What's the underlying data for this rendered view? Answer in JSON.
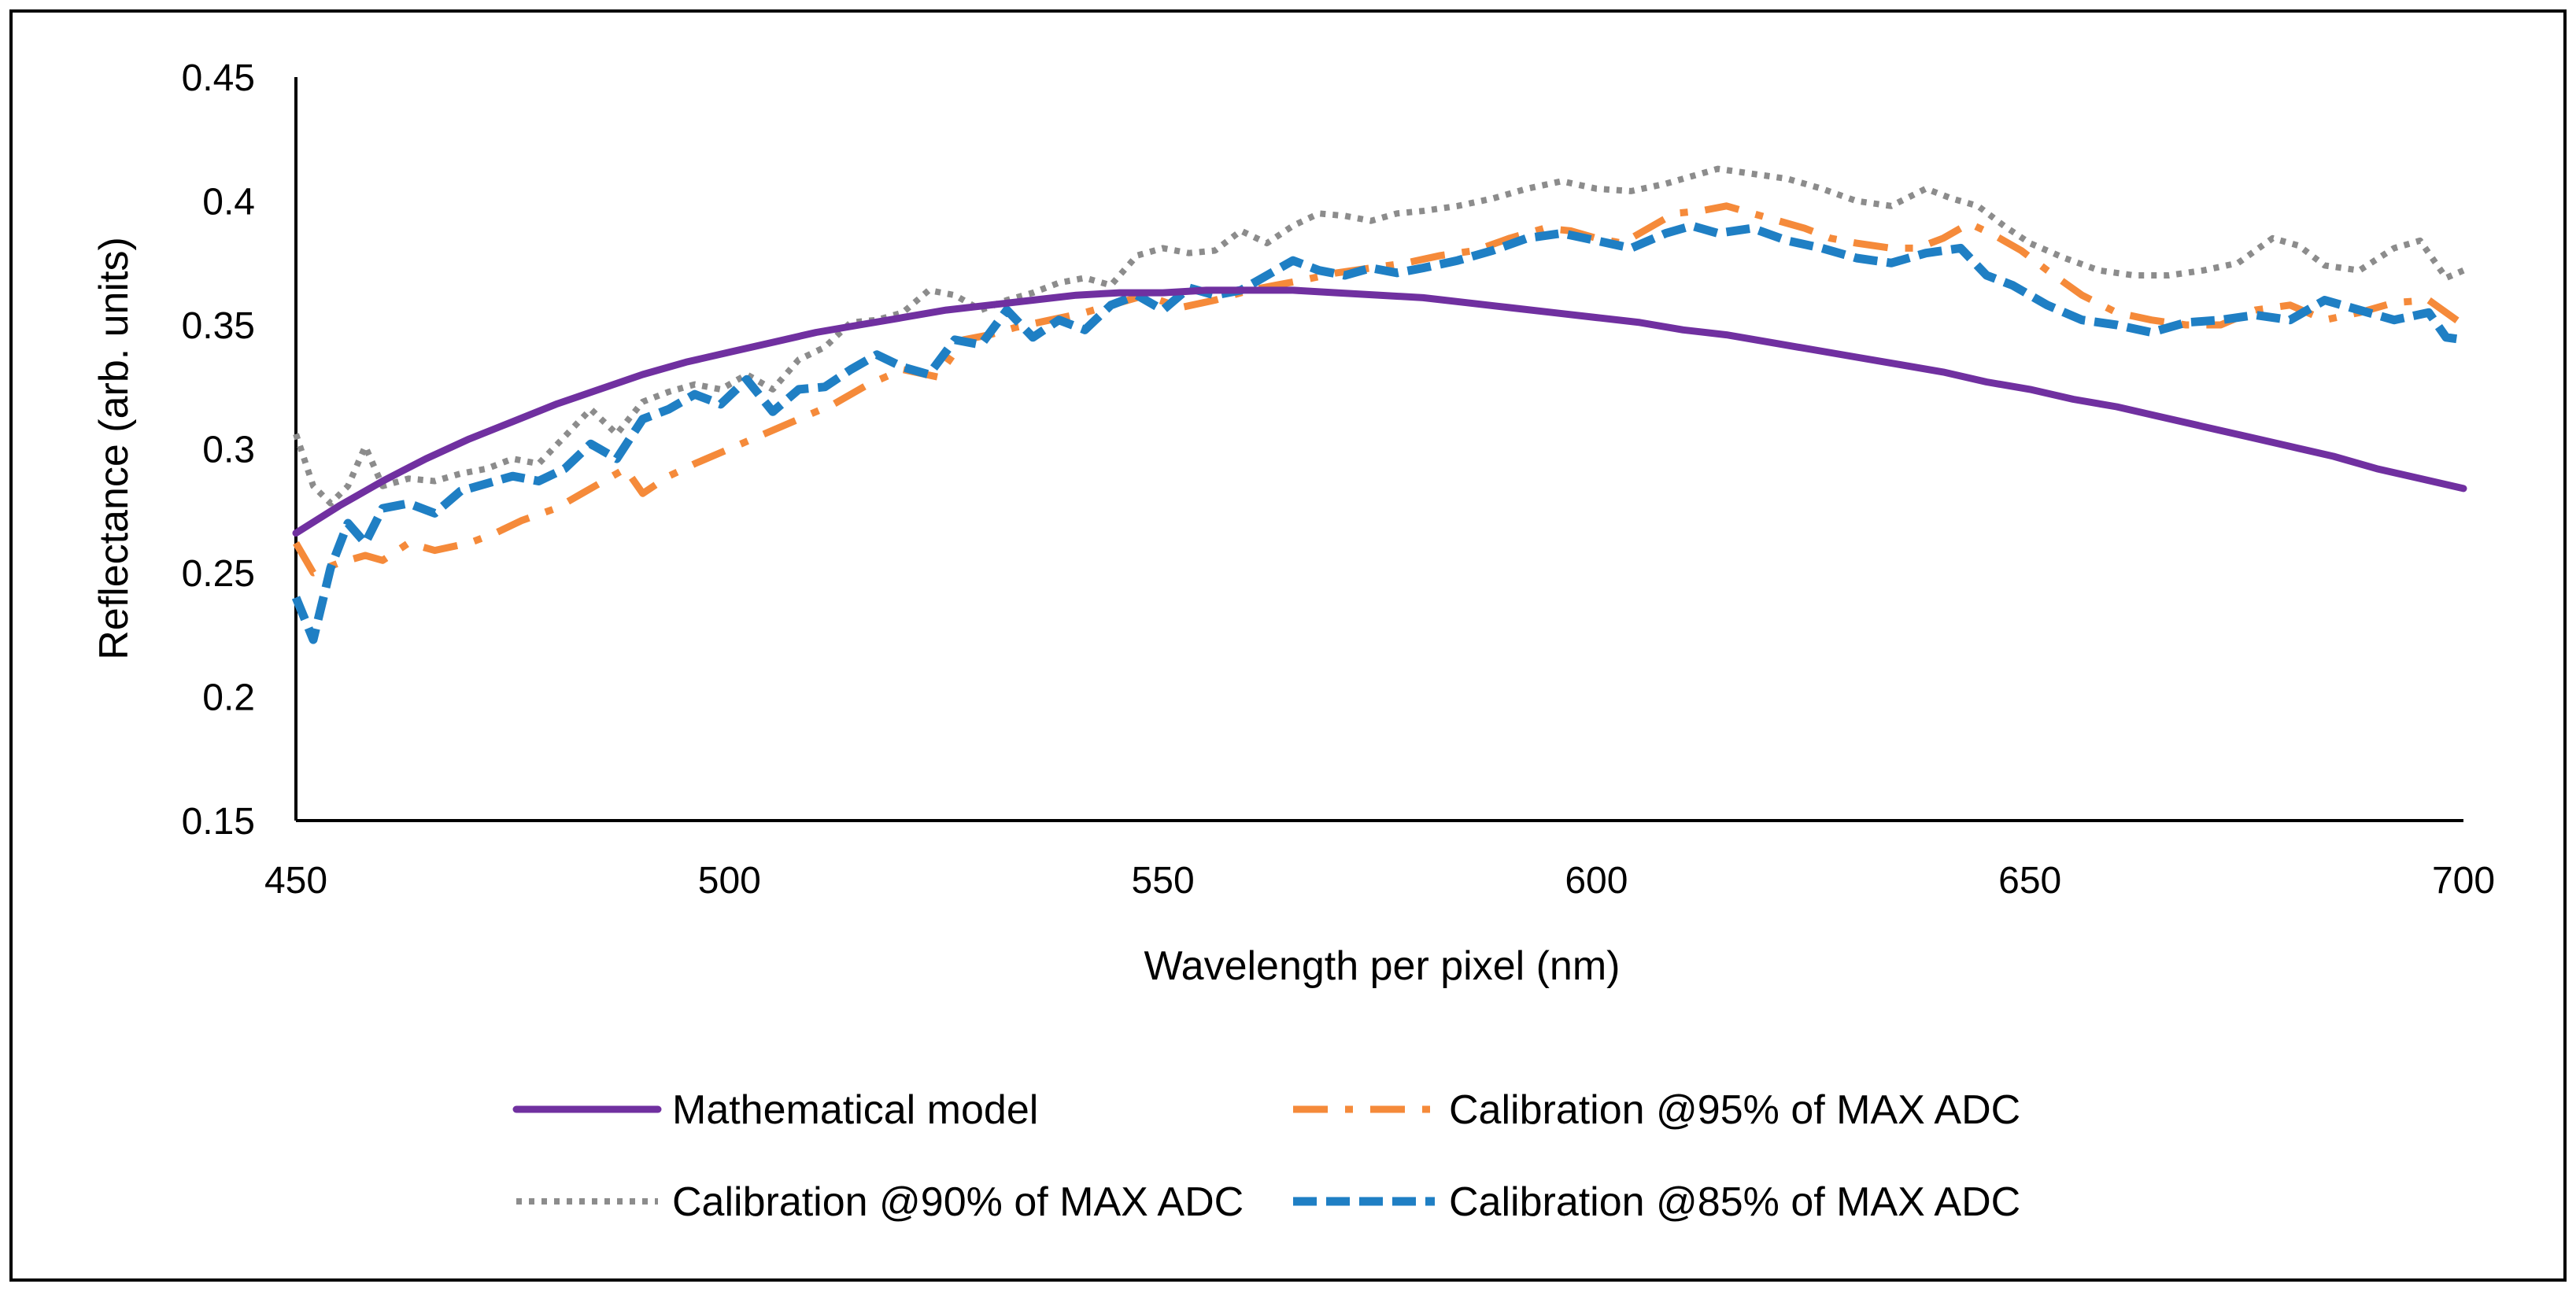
{
  "chart_data": {
    "type": "line",
    "title": "",
    "xlabel": "Wavelength per pixel (nm)",
    "ylabel": "Reflectance (arb. units)",
    "xlim": [
      450,
      700
    ],
    "ylim": [
      0.15,
      0.45
    ],
    "xticks": [
      450,
      500,
      550,
      600,
      650,
      700
    ],
    "xtick_labels": [
      "450",
      "500",
      "550",
      "600",
      "650",
      "700"
    ],
    "yticks": [
      0.15,
      0.2,
      0.25,
      0.3,
      0.35,
      0.4,
      0.45
    ],
    "ytick_labels": [
      "0.15",
      "0.2",
      "0.25",
      "0.3",
      "0.35",
      "0.4",
      "0.45"
    ],
    "grid": false,
    "legend_position": "bottom",
    "series": [
      {
        "name": "Mathematical model",
        "color": "#7030A0",
        "style": "solid",
        "points": [
          [
            450,
            0.266
          ],
          [
            455,
            0.277
          ],
          [
            460,
            0.287
          ],
          [
            465,
            0.296
          ],
          [
            470,
            0.304
          ],
          [
            475,
            0.311
          ],
          [
            480,
            0.318
          ],
          [
            485,
            0.324
          ],
          [
            490,
            0.33
          ],
          [
            495,
            0.335
          ],
          [
            500,
            0.339
          ],
          [
            505,
            0.343
          ],
          [
            510,
            0.347
          ],
          [
            515,
            0.35
          ],
          [
            520,
            0.353
          ],
          [
            525,
            0.356
          ],
          [
            530,
            0.358
          ],
          [
            535,
            0.36
          ],
          [
            540,
            0.362
          ],
          [
            545,
            0.363
          ],
          [
            550,
            0.363
          ],
          [
            555,
            0.364
          ],
          [
            560,
            0.364
          ],
          [
            565,
            0.364
          ],
          [
            570,
            0.363
          ],
          [
            575,
            0.362
          ],
          [
            580,
            0.361
          ],
          [
            585,
            0.359
          ],
          [
            590,
            0.357
          ],
          [
            595,
            0.355
          ],
          [
            600,
            0.353
          ],
          [
            605,
            0.351
          ],
          [
            610,
            0.348
          ],
          [
            615,
            0.346
          ],
          [
            620,
            0.343
          ],
          [
            625,
            0.34
          ],
          [
            630,
            0.337
          ],
          [
            635,
            0.334
          ],
          [
            640,
            0.331
          ],
          [
            645,
            0.327
          ],
          [
            650,
            0.324
          ],
          [
            655,
            0.32
          ],
          [
            660,
            0.317
          ],
          [
            665,
            0.313
          ],
          [
            670,
            0.309
          ],
          [
            675,
            0.305
          ],
          [
            680,
            0.301
          ],
          [
            685,
            0.297
          ],
          [
            690,
            0.292
          ],
          [
            695,
            0.288
          ],
          [
            700,
            0.284
          ]
        ]
      },
      {
        "name": "Calibration @95% of MAX ADC",
        "color": "#F58A3A",
        "style": "dashdot",
        "points": [
          [
            450,
            0.262
          ],
          [
            452,
            0.25
          ],
          [
            455,
            0.254
          ],
          [
            458,
            0.257
          ],
          [
            460,
            0.255
          ],
          [
            463,
            0.262
          ],
          [
            466,
            0.259
          ],
          [
            470,
            0.262
          ],
          [
            473,
            0.266
          ],
          [
            476,
            0.271
          ],
          [
            480,
            0.276
          ],
          [
            483,
            0.282
          ],
          [
            486,
            0.288
          ],
          [
            488,
            0.292
          ],
          [
            490,
            0.282
          ],
          [
            493,
            0.289
          ],
          [
            496,
            0.294
          ],
          [
            500,
            0.3
          ],
          [
            504,
            0.306
          ],
          [
            508,
            0.312
          ],
          [
            512,
            0.318
          ],
          [
            516,
            0.326
          ],
          [
            520,
            0.332
          ],
          [
            524,
            0.329
          ],
          [
            527,
            0.344
          ],
          [
            530,
            0.346
          ],
          [
            533,
            0.349
          ],
          [
            537,
            0.352
          ],
          [
            541,
            0.355
          ],
          [
            544,
            0.358
          ],
          [
            548,
            0.362
          ],
          [
            552,
            0.357
          ],
          [
            556,
            0.36
          ],
          [
            560,
            0.364
          ],
          [
            563,
            0.366
          ],
          [
            566,
            0.368
          ],
          [
            570,
            0.371
          ],
          [
            574,
            0.373
          ],
          [
            578,
            0.375
          ],
          [
            582,
            0.378
          ],
          [
            586,
            0.38
          ],
          [
            590,
            0.385
          ],
          [
            594,
            0.389
          ],
          [
            597,
            0.388
          ],
          [
            600,
            0.385
          ],
          [
            603,
            0.383
          ],
          [
            606,
            0.389
          ],
          [
            609,
            0.395
          ],
          [
            612,
            0.396
          ],
          [
            615,
            0.398
          ],
          [
            618,
            0.395
          ],
          [
            621,
            0.392
          ],
          [
            624,
            0.389
          ],
          [
            627,
            0.385
          ],
          [
            630,
            0.383
          ],
          [
            634,
            0.381
          ],
          [
            637,
            0.381
          ],
          [
            640,
            0.385
          ],
          [
            643,
            0.391
          ],
          [
            646,
            0.386
          ],
          [
            649,
            0.38
          ],
          [
            652,
            0.372
          ],
          [
            656,
            0.362
          ],
          [
            660,
            0.355
          ],
          [
            664,
            0.352
          ],
          [
            668,
            0.35
          ],
          [
            672,
            0.35
          ],
          [
            676,
            0.356
          ],
          [
            680,
            0.358
          ],
          [
            684,
            0.352
          ],
          [
            688,
            0.355
          ],
          [
            692,
            0.359
          ],
          [
            696,
            0.36
          ],
          [
            698,
            0.355
          ],
          [
            700,
            0.35
          ]
        ]
      },
      {
        "name": "Calibration @90% of MAX ADC",
        "color": "#8C8C8C",
        "style": "dotted",
        "points": [
          [
            450,
            0.306
          ],
          [
            452,
            0.285
          ],
          [
            454,
            0.278
          ],
          [
            456,
            0.285
          ],
          [
            458,
            0.301
          ],
          [
            460,
            0.285
          ],
          [
            463,
            0.288
          ],
          [
            466,
            0.287
          ],
          [
            469,
            0.29
          ],
          [
            472,
            0.292
          ],
          [
            475,
            0.296
          ],
          [
            478,
            0.294
          ],
          [
            481,
            0.305
          ],
          [
            484,
            0.316
          ],
          [
            487,
            0.306
          ],
          [
            490,
            0.319
          ],
          [
            493,
            0.323
          ],
          [
            496,
            0.326
          ],
          [
            499,
            0.324
          ],
          [
            502,
            0.33
          ],
          [
            505,
            0.324
          ],
          [
            508,
            0.336
          ],
          [
            511,
            0.341
          ],
          [
            514,
            0.351
          ],
          [
            517,
            0.352
          ],
          [
            520,
            0.355
          ],
          [
            523,
            0.364
          ],
          [
            526,
            0.362
          ],
          [
            529,
            0.356
          ],
          [
            532,
            0.36
          ],
          [
            535,
            0.363
          ],
          [
            538,
            0.367
          ],
          [
            541,
            0.369
          ],
          [
            544,
            0.366
          ],
          [
            547,
            0.378
          ],
          [
            550,
            0.381
          ],
          [
            553,
            0.379
          ],
          [
            556,
            0.38
          ],
          [
            559,
            0.388
          ],
          [
            562,
            0.383
          ],
          [
            565,
            0.39
          ],
          [
            568,
            0.395
          ],
          [
            571,
            0.394
          ],
          [
            574,
            0.392
          ],
          [
            577,
            0.395
          ],
          [
            580,
            0.396
          ],
          [
            584,
            0.398
          ],
          [
            588,
            0.401
          ],
          [
            592,
            0.405
          ],
          [
            596,
            0.408
          ],
          [
            600,
            0.405
          ],
          [
            604,
            0.404
          ],
          [
            608,
            0.407
          ],
          [
            611,
            0.41
          ],
          [
            614,
            0.413
          ],
          [
            618,
            0.411
          ],
          [
            622,
            0.409
          ],
          [
            626,
            0.405
          ],
          [
            630,
            0.4
          ],
          [
            634,
            0.398
          ],
          [
            638,
            0.405
          ],
          [
            641,
            0.401
          ],
          [
            644,
            0.398
          ],
          [
            647,
            0.39
          ],
          [
            650,
            0.383
          ],
          [
            654,
            0.377
          ],
          [
            658,
            0.372
          ],
          [
            662,
            0.37
          ],
          [
            666,
            0.37
          ],
          [
            670,
            0.372
          ],
          [
            674,
            0.375
          ],
          [
            678,
            0.385
          ],
          [
            681,
            0.382
          ],
          [
            684,
            0.374
          ],
          [
            688,
            0.372
          ],
          [
            692,
            0.381
          ],
          [
            695,
            0.384
          ],
          [
            698,
            0.369
          ],
          [
            700,
            0.372
          ]
        ]
      },
      {
        "name": "Calibration @85% of MAX ADC",
        "color": "#1F7FC4",
        "style": "dashed",
        "points": [
          [
            450,
            0.24
          ],
          [
            452,
            0.223
          ],
          [
            454,
            0.252
          ],
          [
            456,
            0.27
          ],
          [
            458,
            0.262
          ],
          [
            460,
            0.276
          ],
          [
            463,
            0.278
          ],
          [
            466,
            0.274
          ],
          [
            469,
            0.283
          ],
          [
            472,
            0.286
          ],
          [
            475,
            0.289
          ],
          [
            478,
            0.287
          ],
          [
            481,
            0.292
          ],
          [
            484,
            0.302
          ],
          [
            487,
            0.296
          ],
          [
            490,
            0.312
          ],
          [
            493,
            0.316
          ],
          [
            496,
            0.322
          ],
          [
            499,
            0.318
          ],
          [
            502,
            0.328
          ],
          [
            505,
            0.315
          ],
          [
            508,
            0.324
          ],
          [
            511,
            0.325
          ],
          [
            514,
            0.332
          ],
          [
            517,
            0.338
          ],
          [
            520,
            0.333
          ],
          [
            523,
            0.33
          ],
          [
            526,
            0.344
          ],
          [
            529,
            0.342
          ],
          [
            532,
            0.356
          ],
          [
            535,
            0.345
          ],
          [
            538,
            0.352
          ],
          [
            541,
            0.348
          ],
          [
            544,
            0.358
          ],
          [
            547,
            0.362
          ],
          [
            550,
            0.356
          ],
          [
            553,
            0.365
          ],
          [
            556,
            0.362
          ],
          [
            559,
            0.364
          ],
          [
            562,
            0.37
          ],
          [
            565,
            0.376
          ],
          [
            568,
            0.372
          ],
          [
            571,
            0.37
          ],
          [
            574,
            0.373
          ],
          [
            577,
            0.371
          ],
          [
            580,
            0.373
          ],
          [
            584,
            0.376
          ],
          [
            588,
            0.38
          ],
          [
            592,
            0.385
          ],
          [
            596,
            0.387
          ],
          [
            600,
            0.384
          ],
          [
            604,
            0.381
          ],
          [
            608,
            0.387
          ],
          [
            611,
            0.39
          ],
          [
            614,
            0.387
          ],
          [
            618,
            0.389
          ],
          [
            622,
            0.384
          ],
          [
            626,
            0.381
          ],
          [
            630,
            0.377
          ],
          [
            634,
            0.375
          ],
          [
            638,
            0.379
          ],
          [
            642,
            0.381
          ],
          [
            645,
            0.37
          ],
          [
            648,
            0.366
          ],
          [
            652,
            0.358
          ],
          [
            656,
            0.352
          ],
          [
            660,
            0.35
          ],
          [
            664,
            0.347
          ],
          [
            668,
            0.351
          ],
          [
            672,
            0.352
          ],
          [
            676,
            0.354
          ],
          [
            680,
            0.352
          ],
          [
            684,
            0.36
          ],
          [
            688,
            0.356
          ],
          [
            692,
            0.352
          ],
          [
            696,
            0.355
          ],
          [
            698,
            0.345
          ],
          [
            700,
            0.344
          ]
        ]
      }
    ]
  }
}
